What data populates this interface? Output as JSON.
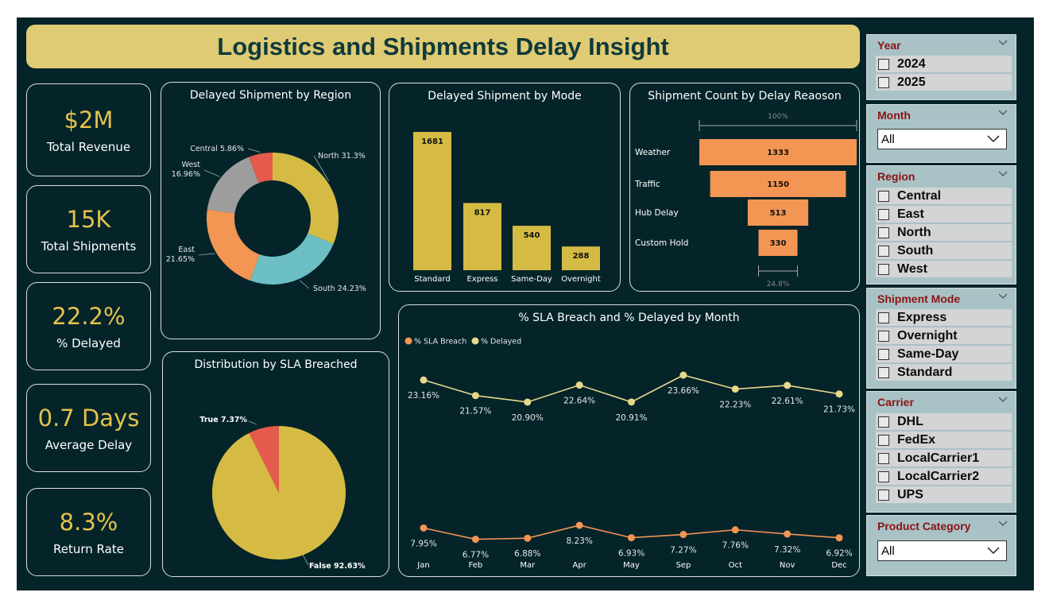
{
  "title": "Logistics and Shipments Delay Insight",
  "colors": {
    "background": "#04242a",
    "title_bar": "#dfcb73",
    "kpi_value": "#e4c24b",
    "gold": "#d5bb43",
    "orange": "#f39553",
    "teal": "#6cbfc4",
    "gray": "#9d9d9d",
    "red": "#e45a4d",
    "slicer_bg": "#a9c2c6",
    "slicer_title": "#8a1313"
  },
  "kpis": [
    {
      "value": "$2M",
      "label": "Total Revenue"
    },
    {
      "value": "15K",
      "label": "Total Shipments"
    },
    {
      "value": "22.2%",
      "label": "% Delayed"
    },
    {
      "value": "0.7 Days",
      "label": "Average Delay"
    },
    {
      "value": "8.3%",
      "label": "Return Rate"
    }
  ],
  "slicers": {
    "year": {
      "title": "Year",
      "options": [
        "2024",
        "2025"
      ]
    },
    "month": {
      "title": "Month",
      "selected": "All"
    },
    "region": {
      "title": "Region",
      "options": [
        "Central",
        "East",
        "North",
        "South",
        "West"
      ]
    },
    "shipment_mode": {
      "title": "Shipment Mode",
      "options": [
        "Express",
        "Overnight",
        "Same-Day",
        "Standard"
      ]
    },
    "carrier": {
      "title": "Carrier",
      "options": [
        "DHL",
        "FedEx",
        "LocalCarrier1",
        "LocalCarrier2",
        "UPS"
      ]
    },
    "product_category": {
      "title": "Product Category",
      "selected": "All"
    }
  },
  "icons": [
    "chevron-down-icon",
    "checkbox-icon"
  ],
  "chart_data": [
    {
      "id": "region",
      "type": "pie",
      "title": "Delayed Shipment by Region",
      "donut": true,
      "slices": [
        {
          "name": "North",
          "value": 31.3,
          "label": "North 31.3%",
          "color": "#d5bb43"
        },
        {
          "name": "South",
          "value": 24.23,
          "label": "South 24.23%",
          "color": "#6cbfc4"
        },
        {
          "name": "East",
          "value": 21.65,
          "label": "East 21.65%",
          "color": "#f39553"
        },
        {
          "name": "West",
          "value": 16.96,
          "label": "West 16.96%",
          "color": "#9d9d9d"
        },
        {
          "name": "Central",
          "value": 5.86,
          "label": "Central 5.86%",
          "color": "#e45a4d"
        }
      ]
    },
    {
      "id": "mode",
      "type": "bar",
      "title": "Delayed Shipment by Mode",
      "categories": [
        "Standard",
        "Express",
        "Same-Day",
        "Overnight"
      ],
      "values": [
        1681,
        817,
        540,
        288
      ],
      "color": "#d5bb43"
    },
    {
      "id": "reason",
      "type": "bar",
      "subtype": "funnel",
      "title": "Shipment Count by Delay Reaoson",
      "categories": [
        "Weather",
        "Traffic",
        "Hub Delay",
        "Custom Hold"
      ],
      "values": [
        1333,
        1150,
        513,
        330
      ],
      "top_percent": "100%",
      "bottom_percent": "24.8%",
      "color": "#f39553"
    },
    {
      "id": "sla",
      "type": "pie",
      "title": "Distribution by SLA Breached",
      "slices": [
        {
          "name": "False",
          "value": 92.63,
          "label": "False 92.63%",
          "color": "#d5bb43"
        },
        {
          "name": "True",
          "value": 7.37,
          "label": "True 7.37%",
          "color": "#e45a4d"
        }
      ]
    },
    {
      "id": "monthly",
      "type": "line",
      "title": "% SLA Breach and % Delayed by Month",
      "categories": [
        "Jan",
        "Feb",
        "Mar",
        "Apr",
        "May",
        "Sep",
        "Oct",
        "Nov",
        "Dec"
      ],
      "series": [
        {
          "name": "% SLA Breach",
          "color": "#f39553",
          "values": [
            7.95,
            6.77,
            6.88,
            8.23,
            6.93,
            7.27,
            7.76,
            7.32,
            6.92
          ],
          "labels": [
            "7.95%",
            "6.77%",
            "6.88%",
            "8.23%",
            "6.93%",
            "7.27%",
            "7.76%",
            "7.32%",
            "6.92%"
          ]
        },
        {
          "name": "% Delayed",
          "color": "#e8d98a",
          "values": [
            23.16,
            21.57,
            20.9,
            22.64,
            20.91,
            23.66,
            22.23,
            22.61,
            21.73
          ],
          "labels": [
            "23.16%",
            "21.57%",
            "20.90%",
            "22.64%",
            "20.91%",
            "23.66%",
            "22.23%",
            "22.61%",
            "21.73%"
          ]
        }
      ]
    }
  ]
}
